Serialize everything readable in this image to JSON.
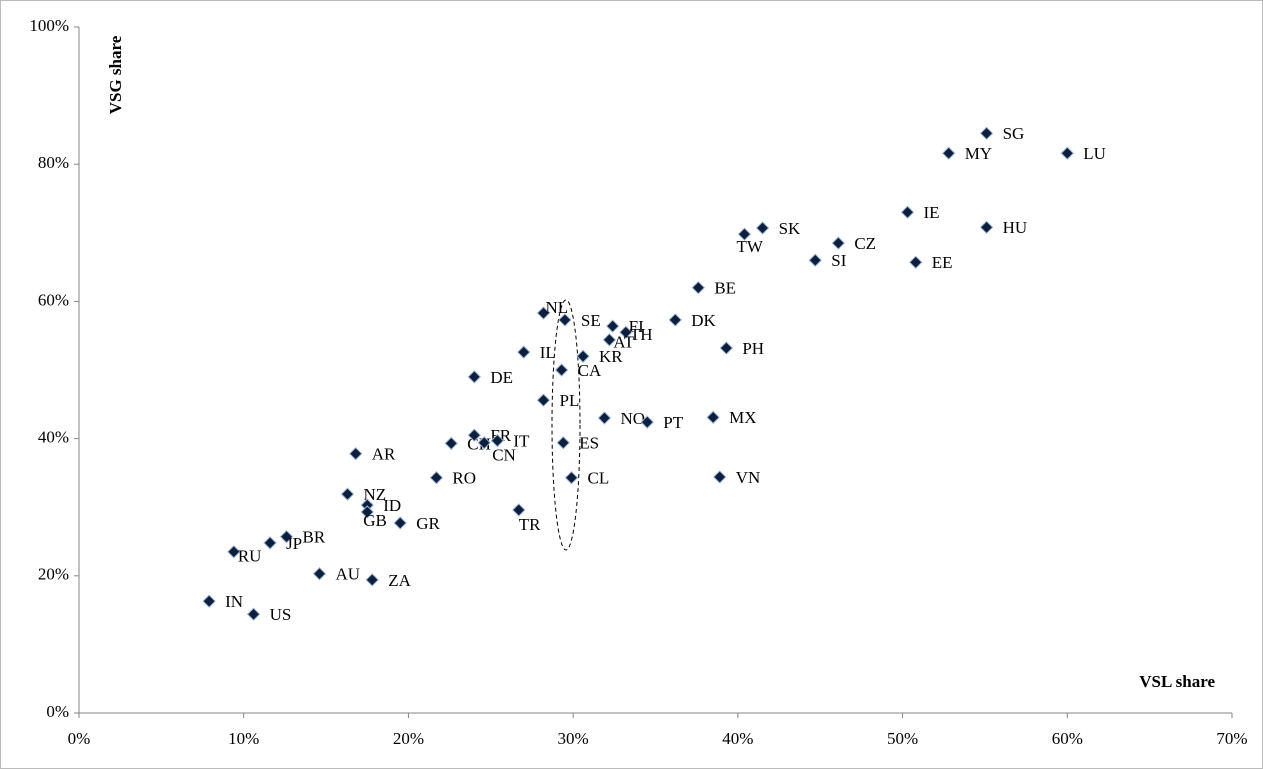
{
  "chart_data": {
    "type": "scatter",
    "x_label": "VSL share",
    "y_label": "VSG share",
    "xlim": [
      0,
      70
    ],
    "ylim": [
      0,
      100
    ],
    "xticks": [
      {
        "value": 0,
        "label": "0%"
      },
      {
        "value": 10,
        "label": "10%"
      },
      {
        "value": 20,
        "label": "20%"
      },
      {
        "value": 30,
        "label": "30%"
      },
      {
        "value": 40,
        "label": "40%"
      },
      {
        "value": 50,
        "label": "50%"
      },
      {
        "value": 60,
        "label": "60%"
      },
      {
        "value": 70,
        "label": "70%"
      }
    ],
    "yticks": [
      {
        "value": 0,
        "label": "0%"
      },
      {
        "value": 20,
        "label": "20%"
      },
      {
        "value": 40,
        "label": "40%"
      },
      {
        "value": 60,
        "label": "60%"
      },
      {
        "value": 80,
        "label": "80%"
      },
      {
        "value": 100,
        "label": "100%"
      }
    ],
    "color": "#0d1f3c",
    "labels": [
      "SG",
      "MY",
      "LU",
      "IE",
      "HU",
      "SK",
      "TW",
      "CZ",
      "SI",
      "EE",
      "BE",
      "NL",
      "SE",
      "FI",
      "DK",
      "TH",
      "AT",
      "PH",
      "IL",
      "KR",
      "CA",
      "DE",
      "PL",
      "NO",
      "PT",
      "MX",
      "CH",
      "FR",
      "CN",
      "IT",
      "ES",
      "AR",
      "VN",
      "CL",
      "RO",
      "NZ",
      "ID",
      "GB",
      "TR",
      "GR",
      "BR",
      "JP",
      "RU",
      "AU",
      "ZA",
      "IN",
      "US"
    ],
    "x": [
      55.1,
      52.8,
      60.0,
      50.3,
      55.1,
      41.5,
      40.4,
      46.1,
      44.7,
      50.8,
      37.6,
      28.2,
      29.5,
      32.4,
      36.2,
      33.2,
      32.2,
      39.3,
      27.0,
      30.6,
      29.3,
      24.0,
      28.2,
      31.9,
      34.5,
      38.5,
      22.6,
      24.0,
      24.6,
      25.4,
      29.4,
      16.8,
      38.9,
      29.9,
      21.7,
      16.3,
      17.5,
      17.5,
      26.7,
      19.5,
      12.6,
      11.6,
      9.4,
      14.6,
      17.8,
      7.9,
      10.6
    ],
    "y": [
      84.5,
      81.6,
      81.6,
      73.0,
      70.8,
      70.7,
      69.8,
      68.5,
      66.0,
      65.7,
      62.0,
      58.3,
      57.3,
      56.4,
      57.3,
      55.5,
      54.4,
      53.2,
      52.6,
      52.0,
      50.0,
      49.0,
      45.6,
      43.0,
      42.4,
      43.1,
      39.3,
      40.5,
      39.4,
      39.7,
      39.4,
      37.8,
      34.4,
      34.3,
      34.3,
      31.9,
      30.3,
      29.3,
      29.6,
      27.7,
      25.7,
      24.8,
      23.5,
      20.3,
      19.4,
      16.3,
      14.4
    ]
  }
}
